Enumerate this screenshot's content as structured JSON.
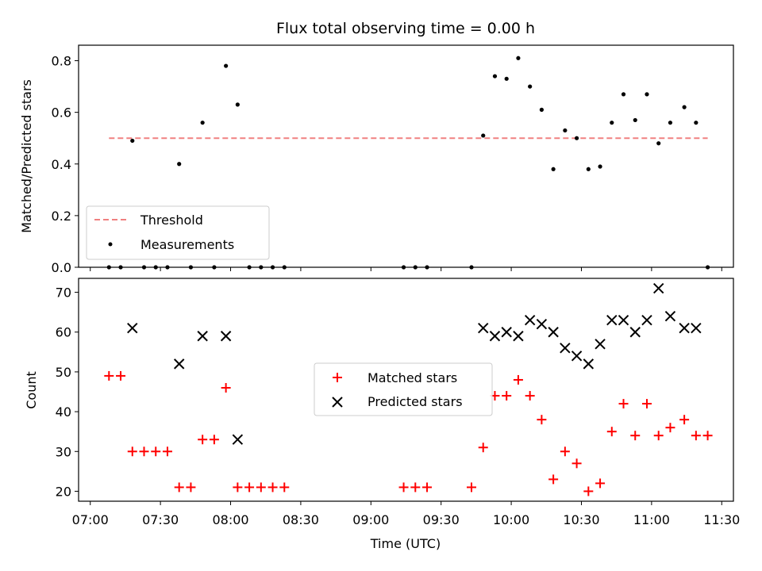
{
  "chart_data": [
    {
      "type": "scatter",
      "panel": "top",
      "title": "Flux total observing time = 0.00 h",
      "xlabel": "",
      "ylabel": "Matched/Predicted stars",
      "xlim": [
        "06:55",
        "11:35"
      ],
      "ylim": [
        0,
        0.86
      ],
      "yticks": [
        0.0,
        0.2,
        0.4,
        0.6,
        0.8
      ],
      "ytick_labels": [
        "0.0",
        "0.2",
        "0.4",
        "0.6",
        "0.8"
      ],
      "legend": "lower-left",
      "grid": false,
      "series": [
        {
          "name": "Threshold",
          "kind": "dashed-line",
          "color": "#f08080",
          "points": [
            [
              "07:08",
              0.5
            ],
            [
              "11:24",
              0.5
            ]
          ]
        },
        {
          "name": "Measurements",
          "kind": "dots",
          "color": "#000000",
          "points": [
            [
              "07:08",
              0.0
            ],
            [
              "07:13",
              0.0
            ],
            [
              "07:18",
              0.49
            ],
            [
              "07:23",
              0.0
            ],
            [
              "07:28",
              0.0
            ],
            [
              "07:33",
              0.0
            ],
            [
              "07:38",
              0.4
            ],
            [
              "07:43",
              0.0
            ],
            [
              "07:48",
              0.56
            ],
            [
              "07:53",
              0.0
            ],
            [
              "07:58",
              0.78
            ],
            [
              "08:03",
              0.63
            ],
            [
              "08:08",
              0.0
            ],
            [
              "08:13",
              0.0
            ],
            [
              "08:18",
              0.0
            ],
            [
              "08:23",
              0.0
            ],
            [
              "09:14",
              0.0
            ],
            [
              "09:19",
              0.0
            ],
            [
              "09:24",
              0.0
            ],
            [
              "09:43",
              0.0
            ],
            [
              "09:48",
              0.51
            ],
            [
              "09:53",
              0.74
            ],
            [
              "09:58",
              0.73
            ],
            [
              "10:03",
              0.81
            ],
            [
              "10:08",
              0.7
            ],
            [
              "10:13",
              0.61
            ],
            [
              "10:18",
              0.38
            ],
            [
              "10:23",
              0.53
            ],
            [
              "10:28",
              0.5
            ],
            [
              "10:33",
              0.38
            ],
            [
              "10:38",
              0.39
            ],
            [
              "10:43",
              0.56
            ],
            [
              "10:48",
              0.67
            ],
            [
              "10:53",
              0.57
            ],
            [
              "10:58",
              0.67
            ],
            [
              "11:03",
              0.48
            ],
            [
              "11:08",
              0.56
            ],
            [
              "11:14",
              0.62
            ],
            [
              "11:19",
              0.56
            ],
            [
              "11:24",
              0.0
            ]
          ]
        }
      ]
    },
    {
      "type": "scatter",
      "panel": "bottom",
      "title": "",
      "xlabel": "Time (UTC)",
      "ylabel": "Count",
      "xlim": [
        "06:55",
        "11:35"
      ],
      "ylim": [
        17.5,
        73.5
      ],
      "xticks": [
        "07:00",
        "07:30",
        "08:00",
        "08:30",
        "09:00",
        "09:30",
        "10:00",
        "10:30",
        "11:00",
        "11:30"
      ],
      "yticks": [
        20,
        30,
        40,
        50,
        60,
        70
      ],
      "ytick_labels": [
        "20",
        "30",
        "40",
        "50",
        "60",
        "70"
      ],
      "legend": "center",
      "grid": false,
      "series": [
        {
          "name": "Matched stars",
          "marker": "plus",
          "color": "#ff0000",
          "points": [
            [
              "07:08",
              49
            ],
            [
              "07:13",
              49
            ],
            [
              "07:18",
              30
            ],
            [
              "07:23",
              30
            ],
            [
              "07:28",
              30
            ],
            [
              "07:33",
              30
            ],
            [
              "07:38",
              21
            ],
            [
              "07:43",
              21
            ],
            [
              "07:48",
              33
            ],
            [
              "07:53",
              33
            ],
            [
              "07:58",
              46
            ],
            [
              "08:03",
              21
            ],
            [
              "08:08",
              21
            ],
            [
              "08:13",
              21
            ],
            [
              "08:18",
              21
            ],
            [
              "08:23",
              21
            ],
            [
              "09:14",
              21
            ],
            [
              "09:19",
              21
            ],
            [
              "09:24",
              21
            ],
            [
              "09:43",
              21
            ],
            [
              "09:48",
              31
            ],
            [
              "09:53",
              44
            ],
            [
              "09:58",
              44
            ],
            [
              "10:03",
              48
            ],
            [
              "10:08",
              44
            ],
            [
              "10:13",
              38
            ],
            [
              "10:18",
              23
            ],
            [
              "10:23",
              30
            ],
            [
              "10:28",
              27
            ],
            [
              "10:33",
              20
            ],
            [
              "10:38",
              22
            ],
            [
              "10:43",
              35
            ],
            [
              "10:48",
              42
            ],
            [
              "10:53",
              34
            ],
            [
              "10:58",
              42
            ],
            [
              "11:03",
              34
            ],
            [
              "11:08",
              36
            ],
            [
              "11:14",
              38
            ],
            [
              "11:19",
              34
            ],
            [
              "11:24",
              34
            ]
          ]
        },
        {
          "name": "Predicted stars",
          "marker": "x",
          "color": "#000000",
          "points": [
            [
              "07:18",
              61
            ],
            [
              "07:38",
              52
            ],
            [
              "07:48",
              59
            ],
            [
              "07:58",
              59
            ],
            [
              "08:03",
              33
            ],
            [
              "09:48",
              61
            ],
            [
              "09:53",
              59
            ],
            [
              "09:58",
              60
            ],
            [
              "10:03",
              59
            ],
            [
              "10:08",
              63
            ],
            [
              "10:13",
              62
            ],
            [
              "10:18",
              60
            ],
            [
              "10:23",
              56
            ],
            [
              "10:28",
              54
            ],
            [
              "10:33",
              52
            ],
            [
              "10:38",
              57
            ],
            [
              "10:43",
              63
            ],
            [
              "10:48",
              63
            ],
            [
              "10:53",
              60
            ],
            [
              "10:58",
              63
            ],
            [
              "11:03",
              71
            ],
            [
              "11:08",
              64
            ],
            [
              "11:14",
              61
            ],
            [
              "11:19",
              61
            ]
          ]
        }
      ]
    }
  ]
}
